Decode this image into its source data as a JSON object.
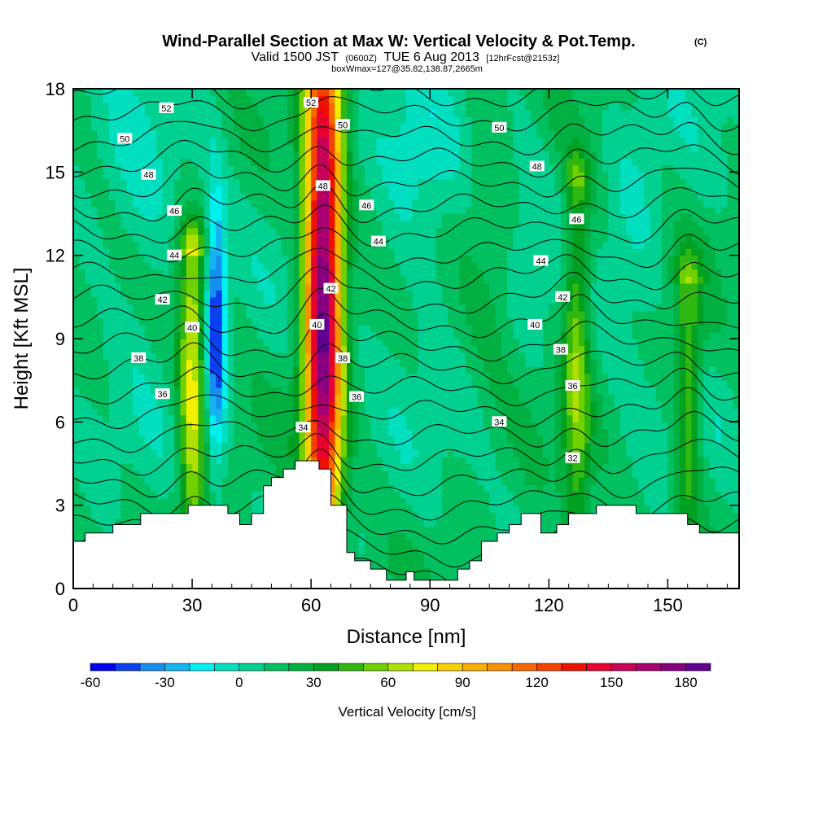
{
  "header": {
    "title": "Wind-Parallel Section at Max W: Vertical Velocity & Pot.Temp.",
    "copyright": "(C)",
    "valid_prefix": "Valid 1500 JST",
    "valid_utc": "(0600Z)",
    "valid_date": "TUE 6 Aug 2013",
    "forecast": "[12hrFcst@2153z]",
    "box_info": "boxWmax=127@35.82,138.87,2665m"
  },
  "colors": {
    "contour": "#000000",
    "terrain": "#ffffff",
    "frame": "#000000",
    "background": "#ffffff"
  },
  "chart_data": {
    "type": "heatmap",
    "title": "Wind-Parallel Section at Max W: Vertical Velocity & Pot.Temp.",
    "xlabel": "Distance [nm]",
    "ylabel": "Height [Kft MSL]",
    "xlim": [
      0,
      168
    ],
    "ylim": [
      0,
      18
    ],
    "x_ticks": [
      0,
      30,
      60,
      90,
      120,
      150
    ],
    "y_ticks": [
      0,
      3,
      6,
      9,
      12,
      15,
      18
    ],
    "colorbar": {
      "label": "Vertical Velocity [cm/s]",
      "range": [
        -60,
        190
      ],
      "tick_values": [
        -60,
        -30,
        0,
        30,
        60,
        90,
        120,
        150,
        180
      ],
      "colors": [
        "#0000f0",
        "#0a40f0",
        "#1490f0",
        "#14b4f0",
        "#00f0f0",
        "#00e0c0",
        "#00d090",
        "#00c060",
        "#00b040",
        "#00a020",
        "#30b810",
        "#70d000",
        "#b0e000",
        "#f0f000",
        "#f8d000",
        "#f8b000",
        "#f89000",
        "#f86800",
        "#f84000",
        "#f01000",
        "#e80030",
        "#c80058",
        "#a80070",
        "#880080",
        "#600090"
      ]
    },
    "theta_contours_label": "Pot.Temp.",
    "theta_levels": [
      31,
      32,
      33,
      34,
      35,
      36,
      37,
      38,
      39,
      40,
      41,
      42,
      43,
      44,
      45,
      46,
      47,
      48,
      49,
      50,
      51,
      52
    ],
    "contour_labels": [
      {
        "text": "52",
        "x": 23.5,
        "y": 17.3
      },
      {
        "text": "50",
        "x": 13,
        "y": 16.2
      },
      {
        "text": "48",
        "x": 19,
        "y": 14.9
      },
      {
        "text": "46",
        "x": 25.5,
        "y": 13.6
      },
      {
        "text": "44",
        "x": 25.5,
        "y": 12.0
      },
      {
        "text": "42",
        "x": 22.5,
        "y": 10.4
      },
      {
        "text": "40",
        "x": 30,
        "y": 9.4
      },
      {
        "text": "38",
        "x": 16.5,
        "y": 8.3
      },
      {
        "text": "36",
        "x": 22.5,
        "y": 7.0
      },
      {
        "text": "52",
        "x": 60,
        "y": 17.5
      },
      {
        "text": "50",
        "x": 68,
        "y": 16.7
      },
      {
        "text": "48",
        "x": 63,
        "y": 14.5
      },
      {
        "text": "46",
        "x": 74,
        "y": 13.8
      },
      {
        "text": "44",
        "x": 77,
        "y": 12.5
      },
      {
        "text": "42",
        "x": 65,
        "y": 10.8
      },
      {
        "text": "40",
        "x": 61.5,
        "y": 9.5
      },
      {
        "text": "38",
        "x": 68,
        "y": 8.3
      },
      {
        "text": "36",
        "x": 71.5,
        "y": 6.9
      },
      {
        "text": "34",
        "x": 58,
        "y": 5.8
      },
      {
        "text": "50",
        "x": 107.5,
        "y": 16.6
      },
      {
        "text": "48",
        "x": 117,
        "y": 15.2
      },
      {
        "text": "46",
        "x": 127,
        "y": 13.3
      },
      {
        "text": "44",
        "x": 118,
        "y": 11.8
      },
      {
        "text": "42",
        "x": 123.5,
        "y": 10.5
      },
      {
        "text": "40",
        "x": 116.5,
        "y": 9.5
      },
      {
        "text": "38",
        "x": 123,
        "y": 8.6
      },
      {
        "text": "36",
        "x": 126,
        "y": 7.3
      },
      {
        "text": "34",
        "x": 107.5,
        "y": 6.0
      },
      {
        "text": "32",
        "x": 126,
        "y": 4.7
      }
    ],
    "updraft_cores": [
      {
        "x": 30,
        "top": 12,
        "peak": 75
      },
      {
        "x": 63,
        "top": 18,
        "peak": 185
      },
      {
        "x": 127,
        "top": 14.5,
        "peak": 55
      },
      {
        "x": 155,
        "top": 11,
        "peak": 50
      }
    ],
    "downdraft_cores": [
      {
        "x": 36,
        "top": 13,
        "peak": -55
      }
    ],
    "terrain_profile": {
      "x": [
        0,
        3,
        3,
        10,
        10,
        17,
        17,
        29,
        29,
        39,
        39,
        42,
        42,
        45,
        45,
        48,
        48,
        50,
        50,
        53,
        53,
        56,
        56,
        62,
        62,
        65,
        65,
        69,
        69,
        71,
        71,
        75,
        75,
        79,
        79,
        84,
        84,
        86,
        86,
        97,
        97,
        100,
        100,
        103,
        103,
        107,
        107,
        110,
        110,
        113,
        113,
        118,
        118,
        122,
        122,
        125,
        125,
        132,
        132,
        142,
        142,
        155,
        155,
        158,
        158,
        168
      ],
      "y": [
        1.7,
        1.7,
        2.0,
        2.0,
        2.3,
        2.3,
        2.7,
        2.7,
        3.0,
        3.0,
        2.7,
        2.7,
        2.3,
        2.3,
        2.7,
        2.7,
        3.7,
        3.7,
        4.0,
        4.0,
        4.3,
        4.3,
        4.6,
        4.6,
        4.3,
        4.3,
        3.0,
        3.0,
        1.3,
        1.3,
        1.0,
        1.0,
        0.7,
        0.7,
        0.3,
        0.3,
        0.6,
        0.6,
        0.3,
        0.3,
        0.7,
        0.7,
        1.0,
        1.0,
        1.7,
        1.7,
        2.0,
        2.0,
        2.3,
        2.3,
        2.7,
        2.7,
        2.0,
        2.0,
        2.3,
        2.3,
        2.7,
        2.7,
        3.0,
        3.0,
        2.7,
        2.7,
        2.3,
        2.3,
        2.0,
        2.0
      ]
    }
  }
}
